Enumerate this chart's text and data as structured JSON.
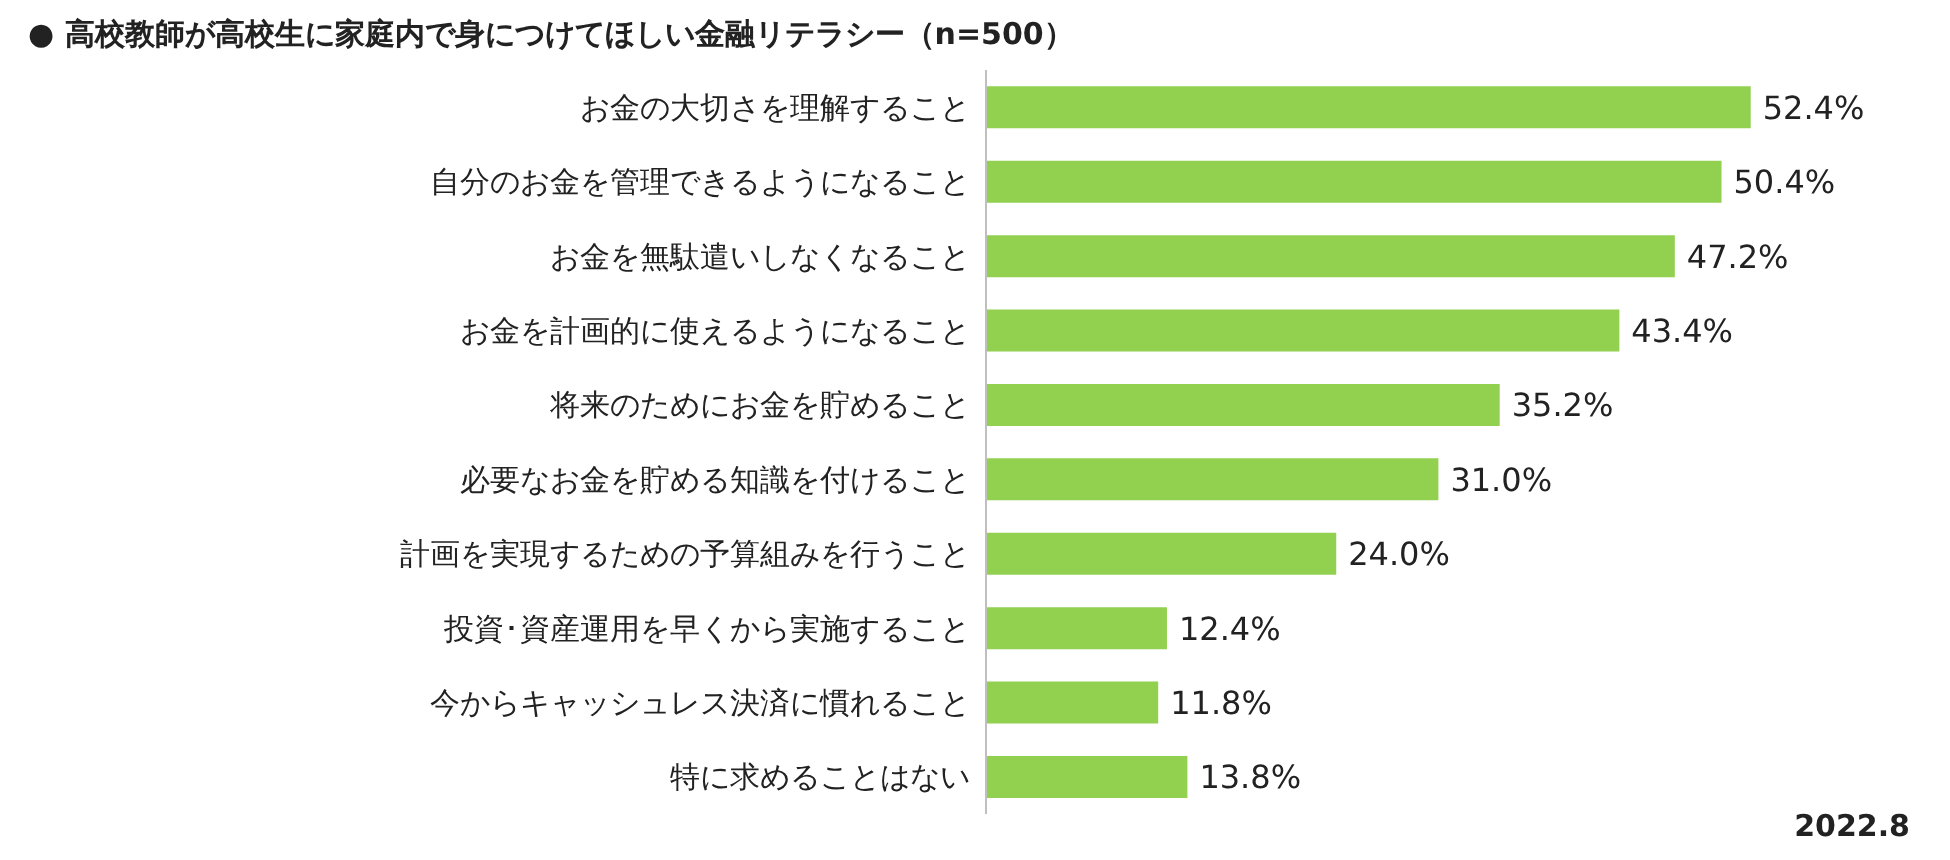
{
  "chart_data": {
    "type": "bar",
    "orientation": "horizontal",
    "title": "● 高校教師が高校生に家庭内で身につけてほしい金融リテラシー（n=500）",
    "categories": [
      "お金の大切さを理解すること",
      "自分のお金を管理できるようになること",
      "お金を無駄遣いしなくなること",
      "お金を計画的に使えるようになること",
      "将来のためにお金を貯めること",
      "必要なお金を貯める知識を付けること",
      "計画を実現するための予算組みを行うこと",
      "投資･資産運用を早くから実施すること",
      "今からキャッシュレス決済に慣れること",
      "特に求めることはない"
    ],
    "values": [
      52.4,
      50.4,
      47.2,
      43.4,
      35.2,
      31.0,
      24.0,
      12.4,
      11.8,
      13.8
    ],
    "value_labels": [
      "52.4%",
      "50.4%",
      "47.2%",
      "43.4%",
      "35.2%",
      "31.0%",
      "24.0%",
      "12.4%",
      "11.8%",
      "13.8%"
    ],
    "color": "#92d050",
    "annotations": [
      "2022.8"
    ]
  }
}
